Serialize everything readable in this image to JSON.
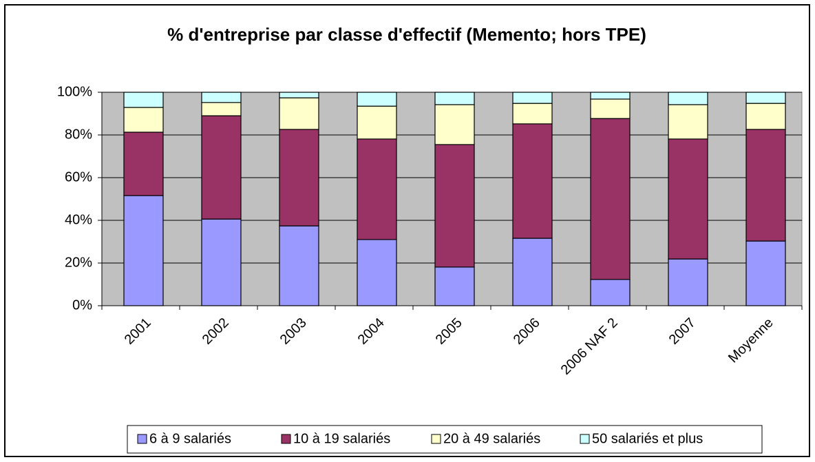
{
  "chart_data": {
    "type": "stacked_bar_100",
    "title": "% d'entreprise par classe d'effectif (Memento; hors TPE)",
    "categories": [
      "2001",
      "2002",
      "2003",
      "2004",
      "2005",
      "2006",
      "2006 NAF 2",
      "2007",
      "Moyenne"
    ],
    "series": [
      {
        "name": "6 à 9 salariés",
        "color": "#9999ff",
        "values": [
          51.6,
          40.6,
          37.4,
          31.0,
          18.1,
          31.6,
          12.3,
          21.9,
          30.3
        ]
      },
      {
        "name": "10 à 19 salariés",
        "color": "#993366",
        "values": [
          29.7,
          48.4,
          45.2,
          47.1,
          57.4,
          53.6,
          75.4,
          56.2,
          52.3
        ]
      },
      {
        "name": "20 à 49 salariés",
        "color": "#ffffcc",
        "values": [
          11.6,
          6.2,
          14.8,
          15.4,
          18.7,
          9.6,
          9.1,
          16.1,
          12.2
        ]
      },
      {
        "name": "50 salariés et plus",
        "color": "#ccffff",
        "values": [
          7.1,
          4.8,
          2.6,
          6.5,
          5.8,
          5.2,
          3.2,
          5.8,
          5.2
        ]
      }
    ],
    "ylim": [
      0,
      100
    ],
    "yticks": [
      {
        "value": 0,
        "label": "0%"
      },
      {
        "value": 20,
        "label": "20%"
      },
      {
        "value": 40,
        "label": "40%"
      },
      {
        "value": 60,
        "label": "60%"
      },
      {
        "value": 80,
        "label": "80%"
      },
      {
        "value": 100,
        "label": "100%"
      }
    ],
    "grid": true,
    "legend": "bottom"
  }
}
